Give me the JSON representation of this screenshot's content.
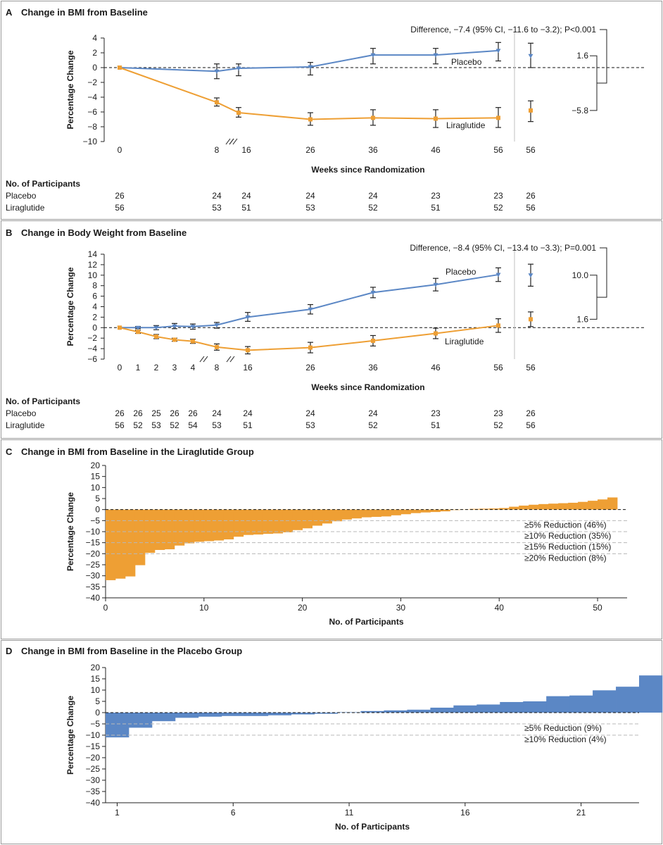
{
  "colors": {
    "placebo": "#5b87c5",
    "liraglutide": "#ee9f34",
    "panel_border": "#9a9a9a",
    "axis": "#222222",
    "reference_dash": "#111111",
    "threshold_dash": "#b8b8b8",
    "separator": "#cccccc",
    "error_bar": "#222222"
  },
  "chart_data": [
    {
      "panel": "A",
      "type": "line",
      "title": "Change in BMI from Baseline",
      "ylabel": "Percentage Change",
      "xlabel": "Weeks since Randomization",
      "ylim": [
        -10,
        4
      ],
      "yticks": [
        4,
        2,
        0,
        -2,
        -4,
        -6,
        -8,
        -10
      ],
      "ytick_labels": [
        "4",
        "2",
        "0",
        "−2",
        "−4",
        "−6",
        "−8",
        "−10"
      ],
      "x_ticks": [
        "0",
        "8",
        "16",
        "26",
        "36",
        "46",
        "56",
        "56"
      ],
      "series": [
        {
          "name": "Placebo",
          "label": "Placebo",
          "color": "#5b87c5",
          "x": [
            0,
            8,
            16,
            26,
            36,
            46,
            56
          ],
          "values": [
            0,
            -0.5,
            -0.1,
            0.1,
            1.7,
            1.7,
            2.3
          ],
          "lower": [
            0,
            -1.5,
            -1.1,
            -1.0,
            0.5,
            0.5,
            0.9
          ],
          "upper": [
            0,
            0.5,
            0.5,
            0.7,
            2.6,
            2.6,
            3.4
          ]
        },
        {
          "name": "Liraglutide",
          "label": "Liraglutide",
          "color": "#ee9f34",
          "x": [
            0,
            8,
            16,
            26,
            36,
            46,
            56
          ],
          "values": [
            0,
            -4.7,
            -6.1,
            -7.0,
            -6.8,
            -6.9,
            -6.8
          ],
          "lower": [
            0,
            -5.2,
            -6.7,
            -7.8,
            -7.8,
            -8.1,
            -8.1
          ],
          "upper": [
            0,
            -4.1,
            -5.4,
            -6.1,
            -5.7,
            -5.7,
            -5.4
          ]
        }
      ],
      "final_estimates": [
        {
          "name": "Placebo",
          "value": 1.6,
          "lower": 0.0,
          "upper": 3.3
        },
        {
          "name": "Liraglutide",
          "value": -5.8,
          "lower": -7.3,
          "upper": -4.5
        }
      ],
      "difference_text": "Difference, −7.4 (95% CI, −11.6 to −3.2); P<0.001",
      "bracket_top": "1.6",
      "bracket_bottom": "−5.8",
      "participants": {
        "heading": "No. of Participants",
        "rows": [
          {
            "label": "Placebo",
            "values": [
              "26",
              "24",
              "24",
              "24",
              "24",
              "23",
              "23",
              "26"
            ]
          },
          {
            "label": "Liraglutide",
            "values": [
              "56",
              "53",
              "51",
              "53",
              "52",
              "51",
              "52",
              "56"
            ]
          }
        ]
      }
    },
    {
      "panel": "B",
      "type": "line",
      "title": "Change in Body Weight from Baseline",
      "ylabel": "Percentage Change",
      "xlabel": "Weeks since Randomization",
      "ylim": [
        -6,
        14
      ],
      "yticks": [
        14,
        12,
        10,
        8,
        6,
        4,
        2,
        0,
        -2,
        -4,
        -6
      ],
      "ytick_labels": [
        "14",
        "12",
        "10",
        "8",
        "6",
        "4",
        "2",
        "0",
        "−2",
        "−4",
        "−6"
      ],
      "x_ticks": [
        "0",
        "1",
        "2",
        "3",
        "4",
        "8",
        "16",
        "26",
        "36",
        "46",
        "56",
        "56"
      ],
      "series": [
        {
          "name": "Placebo",
          "label": "Placebo",
          "color": "#5b87c5",
          "x": [
            0,
            1,
            2,
            3,
            4,
            8,
            16,
            26,
            36,
            46,
            56
          ],
          "values": [
            0,
            0,
            0,
            0.3,
            0.2,
            0.5,
            2.0,
            3.5,
            6.7,
            8.2,
            10.1
          ],
          "lower": [
            0,
            -0.2,
            -0.4,
            -0.2,
            -0.3,
            -0.1,
            1.2,
            2.6,
            5.7,
            7.0,
            8.8
          ],
          "upper": [
            0,
            0.2,
            0.4,
            0.8,
            0.7,
            1.0,
            2.9,
            4.4,
            7.7,
            9.4,
            11.4
          ]
        },
        {
          "name": "Liraglutide",
          "label": "Liraglutide",
          "color": "#ee9f34",
          "x": [
            0,
            1,
            2,
            3,
            4,
            8,
            16,
            26,
            36,
            46,
            56
          ],
          "values": [
            0,
            -0.8,
            -1.7,
            -2.3,
            -2.6,
            -3.7,
            -4.3,
            -3.8,
            -2.5,
            -1.1,
            0.4
          ],
          "lower": [
            0,
            -1.1,
            -2.1,
            -2.6,
            -3.0,
            -4.3,
            -5.0,
            -4.8,
            -3.5,
            -2.1,
            -0.9
          ],
          "upper": [
            0,
            -0.5,
            -1.3,
            -2.0,
            -2.2,
            -3.1,
            -3.6,
            -2.8,
            -1.5,
            -0.1,
            1.7
          ]
        }
      ],
      "final_estimates": [
        {
          "name": "Placebo",
          "value": 10.0,
          "lower": 7.9,
          "upper": 12.1
        },
        {
          "name": "Liraglutide",
          "value": 1.6,
          "lower": 0.2,
          "upper": 3.0
        }
      ],
      "difference_text": "Difference, −8.4 (95% CI, −13.4 to −3.3); P=0.001",
      "bracket_top": "10.0",
      "bracket_bottom": "1.6",
      "participants": {
        "heading": "No. of Participants",
        "rows": [
          {
            "label": "Placebo",
            "values": [
              "26",
              "26",
              "25",
              "26",
              "26",
              "24",
              "24",
              "24",
              "24",
              "23",
              "23",
              "26"
            ]
          },
          {
            "label": "Liraglutide",
            "values": [
              "56",
              "52",
              "53",
              "52",
              "54",
              "53",
              "51",
              "53",
              "52",
              "51",
              "52",
              "56"
            ]
          }
        ]
      }
    },
    {
      "panel": "C",
      "type": "bar",
      "title": "Change in BMI from Baseline in the Liraglutide Group",
      "ylabel": "Percentage Change",
      "xlabel": "No. of Participants",
      "ylim": [
        -40,
        20
      ],
      "yticks": [
        20,
        15,
        10,
        5,
        0,
        -5,
        -10,
        -15,
        -20,
        -25,
        -30,
        -35,
        -40
      ],
      "ytick_labels": [
        "20",
        "15",
        "10",
        "5",
        "0",
        "−5",
        "−10",
        "−15",
        "−20",
        "−25",
        "−30",
        "−35",
        "−40"
      ],
      "xlim": [
        0,
        53
      ],
      "xticks": [
        0,
        10,
        20,
        30,
        40,
        50
      ],
      "xtick_labels": [
        "0",
        "10",
        "20",
        "30",
        "40",
        "50"
      ],
      "color": "#ee9f34",
      "values": [
        -32.0,
        -31.3,
        -30.3,
        -25.2,
        -19.6,
        -18.3,
        -18.0,
        -16.3,
        -15.3,
        -14.6,
        -14.3,
        -14.0,
        -13.5,
        -12.3,
        -11.5,
        -11.3,
        -11.0,
        -10.8,
        -10.3,
        -9.3,
        -8.5,
        -7.3,
        -6.3,
        -5.3,
        -4.5,
        -4.0,
        -3.5,
        -3.3,
        -3.1,
        -2.6,
        -2.1,
        -1.6,
        -1.3,
        -1.1,
        -0.8,
        -0.2,
        0.1,
        0.3,
        0.4,
        0.5,
        0.7,
        1.3,
        1.8,
        2.2,
        2.5,
        2.7,
        2.9,
        3.1,
        3.5,
        4.0,
        4.6,
        5.5
      ],
      "thresholds": [
        {
          "y": -5,
          "label": "≥5% Reduction (46%)"
        },
        {
          "y": -10,
          "label": "≥10% Reduction (35%)"
        },
        {
          "y": -15,
          "label": "≥15% Reduction (15%)"
        },
        {
          "y": -20,
          "label": "≥20% Reduction (8%)"
        }
      ]
    },
    {
      "panel": "D",
      "type": "bar",
      "title": "Change in BMI from Baseline in the Placebo Group",
      "ylabel": "Percentage Change",
      "xlabel": "No. of Participants",
      "ylim": [
        -40,
        20
      ],
      "yticks": [
        20,
        15,
        10,
        5,
        0,
        -5,
        -10,
        -15,
        -20,
        -25,
        -30,
        -35,
        -40
      ],
      "ytick_labels": [
        "20",
        "15",
        "10",
        "5",
        "0",
        "−5",
        "−10",
        "−15",
        "−20",
        "−25",
        "−30",
        "−35",
        "−40"
      ],
      "xlim": [
        0.5,
        23.5
      ],
      "xticks": [
        1,
        6,
        11,
        16,
        21
      ],
      "xtick_labels": [
        "1",
        "6",
        "11",
        "16",
        "21"
      ],
      "color": "#5b87c5",
      "values": [
        -11.0,
        -6.7,
        -3.8,
        -2.3,
        -1.8,
        -1.5,
        -1.5,
        -1.2,
        -0.8,
        -0.5,
        0.2,
        0.7,
        1.0,
        1.3,
        2.2,
        3.2,
        3.6,
        4.7,
        5.0,
        7.3,
        7.6,
        9.9,
        11.5,
        16.5
      ],
      "thresholds": [
        {
          "y": -5,
          "label": "≥5% Reduction (9%)"
        },
        {
          "y": -10,
          "label": "≥10% Reduction (4%)"
        }
      ]
    }
  ]
}
